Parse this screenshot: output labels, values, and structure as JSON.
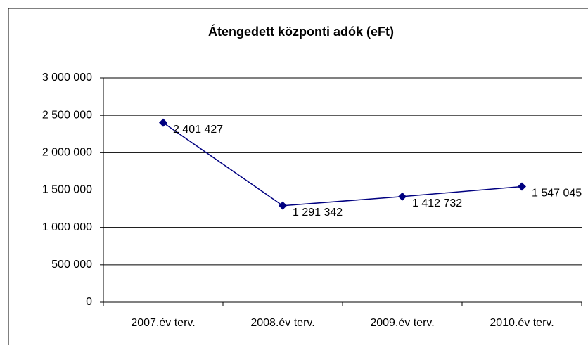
{
  "chart_data": {
    "type": "line",
    "title": "Átengedett központi adók (eFt)",
    "categories": [
      "2007.év terv.",
      "2008.év terv.",
      "2009.év terv.",
      "2010.év terv."
    ],
    "series": [
      {
        "color": "#000080",
        "values": [
          2401427,
          1291342,
          1412732,
          1547045
        ],
        "value_labels": [
          "2 401 427",
          "1 291 342",
          "1 412 732",
          "1 547 045"
        ]
      }
    ],
    "ylim": [
      0,
      3000000
    ],
    "yticks": [
      0,
      {
        "value": 500000,
        "label": "500 000"
      },
      {
        "value": 1000000,
        "label": "1 000 000"
      },
      {
        "value": 1500000,
        "label": "1 500 000"
      },
      {
        "value": 2000000,
        "label": "2 000 000"
      },
      {
        "value": 2500000,
        "label": "2 500 000"
      },
      {
        "value": 3000000,
        "label": "3 000 000"
      }
    ],
    "grid": true
  }
}
